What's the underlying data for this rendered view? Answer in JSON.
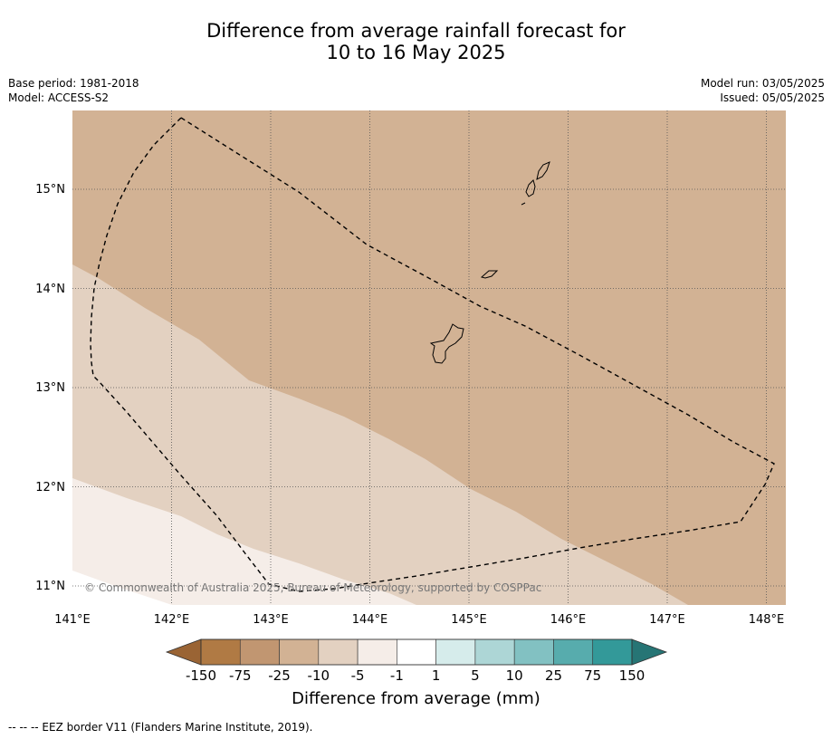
{
  "title": {
    "line1": "Difference from average rainfall forecast for",
    "line2": "10 to 16 May 2025"
  },
  "meta": {
    "base_period": "Base period: 1981-2018",
    "model": "Model: ACCESS-S2",
    "model_run": "Model run: 03/05/2025",
    "issued": "Issued: 05/05/2025"
  },
  "map": {
    "lat_labels": [
      "15°N",
      "14°N",
      "13°N",
      "12°N",
      "11°N"
    ],
    "lon_labels": [
      "141°E",
      "142°E",
      "143°E",
      "144°E",
      "145°E",
      "146°E",
      "147°E",
      "148°E"
    ],
    "copyright": "© Commonwealth of Australia 2025, Bureau of Meteorology, supported by COSPPac",
    "colors": {
      "ocean_dry_25": "#d2b294",
      "dry_10": "#e3d1c1",
      "dry_5": "#f5ede8"
    }
  },
  "colorbar": {
    "tick_labels": [
      "-150",
      "-75",
      "-25",
      "-10",
      "-5",
      "-1",
      "1",
      "5",
      "10",
      "25",
      "75",
      "150"
    ],
    "colors": [
      "#9a6434",
      "#b07a44",
      "#c19671",
      "#d2b294",
      "#e3d1c1",
      "#f5ede8",
      "#ffffff",
      "#d6eceb",
      "#add6d6",
      "#82c1c2",
      "#57acad",
      "#339999",
      "#267575"
    ],
    "title": "Difference from average (mm)"
  },
  "footnote": "--  --  -- EEZ border V11 (Flanders Marine Institute, 2019)."
}
